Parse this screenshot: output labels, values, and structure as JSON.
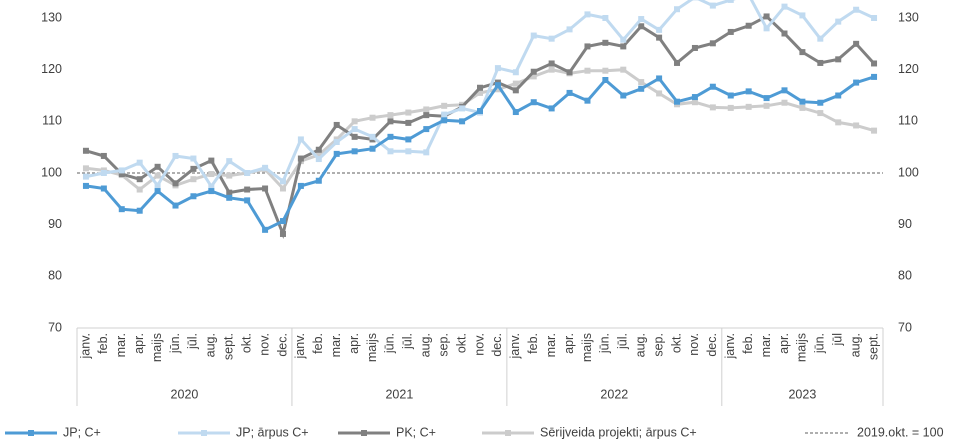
{
  "chart_data": {
    "type": "line",
    "categories": [
      "janv.",
      "feb.",
      "mar.",
      "apr.",
      "maijs",
      "jūn.",
      "jūl.",
      "aug.",
      "sept.",
      "okt.",
      "nov.",
      "dec.",
      "janv.",
      "feb.",
      "mar.",
      "apr.",
      "maijs",
      "jūn.",
      "jūl.",
      "aug.",
      "sep.",
      "okt.",
      "nov.",
      "dec.",
      "janv.",
      "feb.",
      "mar.",
      "apr.",
      "maijs",
      "jūn.",
      "jūl.",
      "aug.",
      "sep.",
      "okt.",
      "nov.",
      "dec.",
      "janv.",
      "feb.",
      "mar.",
      "apr.",
      "maijs",
      "jūn.",
      "jūl",
      "aug.",
      "sept."
    ],
    "years": [
      "2020",
      "2021",
      "2022",
      "2023"
    ],
    "series": [
      {
        "name": "JP; C+",
        "color": "#4e9bd5",
        "values": [
          97.5,
          97,
          93,
          92.7,
          96.5,
          93.7,
          95.5,
          96.5,
          95.2,
          94.7,
          89,
          90.7,
          97.5,
          98.5,
          103.7,
          104.2,
          104.7,
          107,
          106.5,
          108.5,
          110.2,
          110,
          112,
          117,
          111.8,
          113.7,
          112.5,
          115.5,
          114,
          118,
          115,
          116.3,
          118.3,
          113.8,
          114.7,
          116.7,
          115,
          115.8,
          114.5,
          116,
          113.8,
          113.6,
          115,
          117.5,
          118.6
        ]
      },
      {
        "name": "JP; ārpus C+",
        "color": "#c0daf0",
        "values": [
          99.3,
          100,
          100.5,
          102,
          97.6,
          103.3,
          102.8,
          97.4,
          102.3,
          100,
          101,
          98.4,
          106.5,
          102.7,
          106,
          108.5,
          107,
          104.2,
          104.2,
          104,
          111.3,
          112.5,
          111.7,
          120.3,
          119.5,
          126.6,
          126,
          127.8,
          130.7,
          130,
          125.8,
          129.8,
          127.7,
          131.7,
          134,
          132.4,
          133.5,
          134.5,
          128,
          132.2,
          130.5,
          126,
          129.3,
          131.6,
          130
        ]
      },
      {
        "name": "PK; C+",
        "color": "#808080",
        "values": [
          104.3,
          103.3,
          99.8,
          98.8,
          101.2,
          98,
          100.8,
          102.4,
          96.2,
          96.8,
          97,
          88.2,
          102.8,
          104.5,
          109.3,
          107,
          106.5,
          110,
          109.7,
          111.2,
          111,
          112.8,
          116.5,
          117.5,
          116,
          119.6,
          121.2,
          119.5,
          124.5,
          125.2,
          124.5,
          128.4,
          126.2,
          121.3,
          124.2,
          125.1,
          127.3,
          128.5,
          130.3,
          127,
          123.4,
          121.3,
          122,
          125,
          121.2
        ]
      },
      {
        "name": "Sērijveida projekti; ārpus C+",
        "color": "#cccccc",
        "values": [
          100.9,
          100.5,
          99.6,
          96.8,
          99.5,
          97.6,
          98.8,
          99.8,
          99.5,
          100,
          100.7,
          97,
          102.3,
          103.5,
          106.5,
          110,
          110.7,
          111.2,
          111.7,
          112.3,
          113,
          113.2,
          115.5,
          116.2,
          117.3,
          118.7,
          120,
          119.3,
          119.8,
          119.8,
          120,
          117.6,
          115.4,
          113.3,
          113.7,
          112.7,
          112.6,
          112.8,
          113,
          113.6,
          112.6,
          111.6,
          109.8,
          109.2,
          108.2
        ]
      }
    ],
    "reference_line": {
      "name": "2019.okt. = 100",
      "value": 100,
      "color": "#7f7f7f"
    },
    "ylim": [
      70,
      130
    ],
    "yticks": [
      70,
      80,
      90,
      100,
      110,
      120,
      130
    ],
    "y2lim": [
      70,
      130
    ],
    "y2ticks": [
      70,
      80,
      90,
      100,
      110,
      120,
      130
    ],
    "legend": "bottom"
  }
}
